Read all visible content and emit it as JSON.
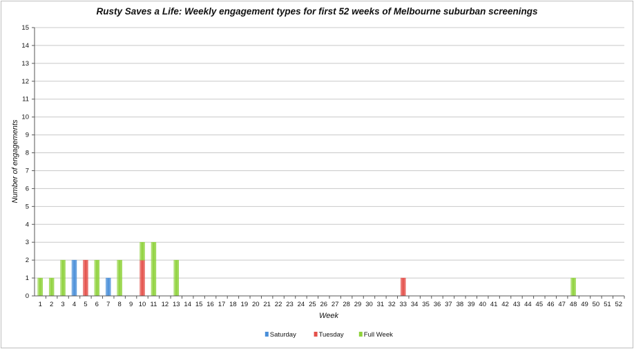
{
  "chart_data": {
    "type": "bar",
    "stacked": true,
    "title": "Rusty Saves a Life: Weekly engagement types for first 52 weeks of Melbourne suburban screenings",
    "xlabel": "Week",
    "ylabel": "Number of engagements",
    "ylim": [
      0,
      15
    ],
    "yticks": [
      "0",
      "1",
      "2",
      "3",
      "4",
      "5",
      "6",
      "7",
      "8",
      "9",
      "10",
      "11",
      "12",
      "13",
      "14",
      "15"
    ],
    "grid": true,
    "legend_position": "bottom",
    "categories": [
      "1",
      "2",
      "3",
      "4",
      "5",
      "6",
      "7",
      "8",
      "9",
      "10",
      "11",
      "12",
      "13",
      "14",
      "15",
      "16",
      "17",
      "18",
      "19",
      "20",
      "21",
      "22",
      "23",
      "24",
      "25",
      "26",
      "27",
      "28",
      "29",
      "30",
      "31",
      "32",
      "33",
      "34",
      "35",
      "36",
      "37",
      "38",
      "39",
      "40",
      "41",
      "42",
      "43",
      "44",
      "45",
      "46",
      "47",
      "48",
      "49",
      "50",
      "51",
      "52"
    ],
    "series": [
      {
        "name": "Saturday",
        "color": "#4a8fd9",
        "values": [
          0,
          0,
          0,
          2,
          0,
          0,
          1,
          0,
          0,
          0,
          0,
          0,
          0,
          0,
          0,
          0,
          0,
          0,
          0,
          0,
          0,
          0,
          0,
          0,
          0,
          0,
          0,
          0,
          0,
          0,
          0,
          0,
          0,
          0,
          0,
          0,
          0,
          0,
          0,
          0,
          0,
          0,
          0,
          0,
          0,
          0,
          0,
          0,
          0,
          0,
          0,
          0
        ]
      },
      {
        "name": "Tuesday",
        "color": "#e4504a",
        "values": [
          0,
          0,
          0,
          0,
          2,
          0,
          0,
          0,
          0,
          2,
          0,
          0,
          0,
          0,
          0,
          0,
          0,
          0,
          0,
          0,
          0,
          0,
          0,
          0,
          0,
          0,
          0,
          0,
          0,
          0,
          0,
          0,
          1,
          0,
          0,
          0,
          0,
          0,
          0,
          0,
          0,
          0,
          0,
          0,
          0,
          0,
          0,
          0,
          0,
          0,
          0,
          0
        ]
      },
      {
        "name": "Full Week",
        "color": "#8fd23c",
        "values": [
          1,
          1,
          2,
          0,
          0,
          2,
          0,
          2,
          0,
          1,
          3,
          0,
          2,
          0,
          0,
          0,
          0,
          0,
          0,
          0,
          0,
          0,
          0,
          0,
          0,
          0,
          0,
          0,
          0,
          0,
          0,
          0,
          0,
          0,
          0,
          0,
          0,
          0,
          0,
          0,
          0,
          0,
          0,
          0,
          0,
          0,
          0,
          1,
          0,
          0,
          0,
          0
        ]
      }
    ]
  }
}
